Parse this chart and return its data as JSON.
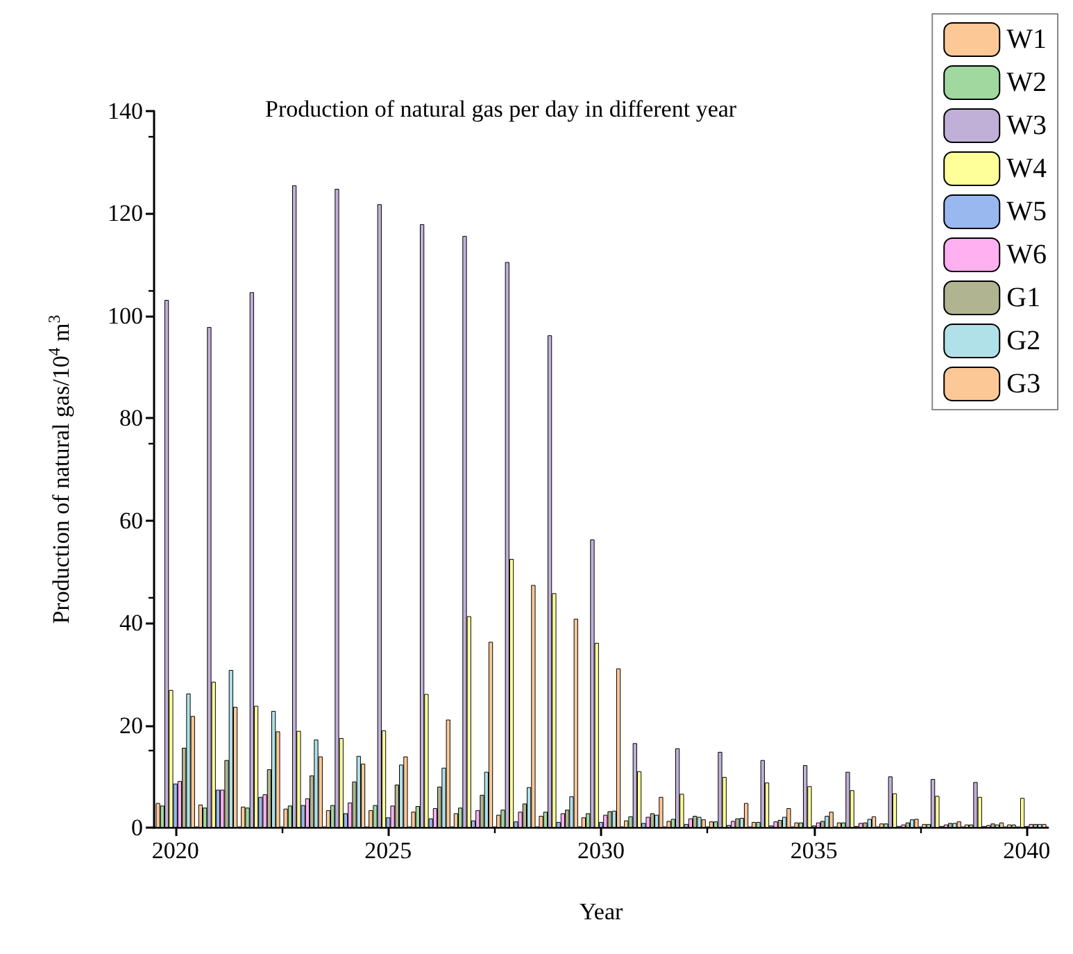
{
  "chart_data": {
    "type": "bar",
    "title": "Production of natural gas per day in different year",
    "xlabel": "Year",
    "ylabel": "Production of natural gas/10$^{4}$ m$^{3}$",
    "x": [
      2020,
      2021,
      2022,
      2023,
      2024,
      2025,
      2026,
      2027,
      2028,
      2029,
      2030,
      2031,
      2032,
      2033,
      2034,
      2035,
      2036,
      2037,
      2038,
      2039,
      2040
    ],
    "xlim": [
      2019.5,
      2040.5
    ],
    "xticks": [
      2020,
      2025,
      2030,
      2035,
      2040
    ],
    "ylim": [
      0,
      140
    ],
    "yticks": [
      0,
      20,
      40,
      60,
      80,
      100,
      120,
      140
    ],
    "legend": "top right",
    "grid": false,
    "series": [
      {
        "name": "W1",
        "color": "#fcc896",
        "values": [
          4.8,
          4.5,
          4.1,
          3.7,
          3.4,
          3.4,
          3.1,
          2.8,
          2.5,
          2.3,
          2.0,
          1.4,
          1.3,
          1.2,
          1.1,
          1.0,
          1.0,
          0.8,
          0.7,
          0.6,
          0.6
        ]
      },
      {
        "name": "W2",
        "color": "#a0d8a0",
        "values": [
          4.3,
          3.9,
          3.9,
          4.3,
          4.4,
          4.4,
          4.2,
          3.9,
          3.5,
          3.1,
          2.8,
          2.2,
          1.7,
          1.2,
          1.1,
          1.0,
          1.0,
          0.8,
          0.7,
          0.6,
          0.6
        ]
      },
      {
        "name": "W3",
        "color": "#c0b0d8",
        "values": [
          103.1,
          97.8,
          104.6,
          125.5,
          124.8,
          121.8,
          117.9,
          115.6,
          110.5,
          96.2,
          56.3,
          16.5,
          15.5,
          14.8,
          13.2,
          12.2,
          10.9,
          10.0,
          9.5,
          8.9,
          null
        ]
      },
      {
        "name": "W4",
        "color": "#ffff99",
        "values": [
          26.9,
          28.5,
          23.8,
          18.9,
          17.5,
          19.0,
          26.1,
          41.3,
          52.5,
          45.8,
          36.1,
          11.0,
          6.6,
          9.9,
          8.8,
          8.1,
          7.3,
          6.7,
          6.2,
          6.0,
          5.8
        ]
      },
      {
        "name": "W5",
        "color": "#99b8f0",
        "values": [
          8.6,
          7.4,
          6.0,
          4.4,
          2.8,
          2.0,
          1.8,
          1.4,
          1.2,
          1.1,
          1.1,
          0.9,
          0.7,
          0.5,
          0.4,
          0.4,
          0.3,
          0.3,
          0.3,
          0.3,
          0.3
        ]
      },
      {
        "name": "W6",
        "color": "#ffb0f0",
        "values": [
          9.1,
          7.4,
          6.5,
          5.7,
          4.9,
          4.3,
          3.8,
          3.4,
          3.1,
          2.8,
          2.5,
          2.1,
          1.8,
          1.3,
          1.2,
          1.0,
          0.9,
          0.6,
          0.6,
          0.5,
          0.7
        ]
      },
      {
        "name": "G1",
        "color": "#b0b490",
        "values": [
          15.6,
          13.2,
          11.4,
          10.2,
          9.0,
          8.4,
          8.0,
          6.4,
          4.7,
          3.5,
          3.2,
          2.8,
          2.3,
          1.8,
          1.5,
          1.3,
          1.0,
          1.0,
          0.9,
          0.8,
          0.7
        ]
      },
      {
        "name": "G2",
        "color": "#b0e0e8",
        "values": [
          26.2,
          30.8,
          22.8,
          17.2,
          14.0,
          12.3,
          11.7,
          10.9,
          7.9,
          6.1,
          3.3,
          2.5,
          2.1,
          1.9,
          2.1,
          2.3,
          1.7,
          1.6,
          0.9,
          0.6,
          0.7
        ]
      },
      {
        "name": "G3",
        "color": "#fcc896",
        "values": [
          21.8,
          23.6,
          18.8,
          13.9,
          12.5,
          13.9,
          21.1,
          36.3,
          47.4,
          40.8,
          31.1,
          6.0,
          1.6,
          4.8,
          3.8,
          3.1,
          2.2,
          1.7,
          1.2,
          1.0,
          0.7
        ]
      }
    ]
  }
}
